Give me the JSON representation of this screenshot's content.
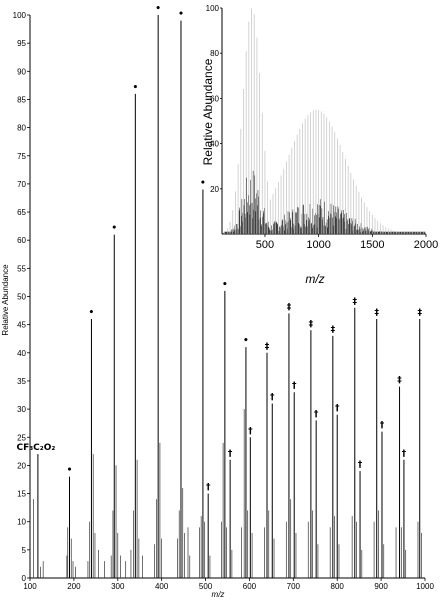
{
  "chart_data": [
    {
      "type": "bar",
      "xlabel": "m/z",
      "ylabel": "Relative Abundance",
      "xlim": [
        100,
        1000
      ],
      "ylim": [
        0,
        100
      ],
      "xticks": [
        100,
        200,
        300,
        400,
        500,
        600,
        700,
        800,
        900,
        1000
      ],
      "yticks": [
        0,
        5,
        10,
        15,
        20,
        25,
        30,
        35,
        40,
        45,
        50,
        55,
        60,
        65,
        70,
        75,
        80,
        85,
        90,
        95,
        100
      ],
      "grid": false,
      "peaks": [
        {
          "mz": 108,
          "intensity": 14
        },
        {
          "mz": 118,
          "intensity": 22,
          "label": "CF₃C₂O₂"
        },
        {
          "mz": 124,
          "intensity": 2
        },
        {
          "mz": 130,
          "intensity": 3
        },
        {
          "mz": 184,
          "intensity": 4
        },
        {
          "mz": 186,
          "intensity": 9
        },
        {
          "mz": 190,
          "intensity": 18,
          "label": "•"
        },
        {
          "mz": 194,
          "intensity": 7
        },
        {
          "mz": 198,
          "intensity": 3
        },
        {
          "mz": 204,
          "intensity": 2
        },
        {
          "mz": 232,
          "intensity": 3
        },
        {
          "mz": 236,
          "intensity": 10
        },
        {
          "mz": 240,
          "intensity": 46,
          "label": "•"
        },
        {
          "mz": 244,
          "intensity": 22
        },
        {
          "mz": 248,
          "intensity": 8
        },
        {
          "mz": 256,
          "intensity": 5
        },
        {
          "mz": 270,
          "intensity": 3
        },
        {
          "mz": 285,
          "intensity": 4
        },
        {
          "mz": 289,
          "intensity": 12
        },
        {
          "mz": 292,
          "intensity": 61,
          "label": "•"
        },
        {
          "mz": 296,
          "intensity": 20
        },
        {
          "mz": 300,
          "intensity": 8
        },
        {
          "mz": 306,
          "intensity": 4
        },
        {
          "mz": 318,
          "intensity": 3
        },
        {
          "mz": 330,
          "intensity": 5
        },
        {
          "mz": 336,
          "intensity": 12
        },
        {
          "mz": 340,
          "intensity": 86,
          "label": "•"
        },
        {
          "mz": 344,
          "intensity": 21
        },
        {
          "mz": 348,
          "intensity": 7
        },
        {
          "mz": 356,
          "intensity": 4
        },
        {
          "mz": 384,
          "intensity": 6
        },
        {
          "mz": 388,
          "intensity": 14
        },
        {
          "mz": 392,
          "intensity": 100,
          "label": "•"
        },
        {
          "mz": 396,
          "intensity": 24
        },
        {
          "mz": 400,
          "intensity": 7
        },
        {
          "mz": 436,
          "intensity": 7
        },
        {
          "mz": 440,
          "intensity": 12
        },
        {
          "mz": 444,
          "intensity": 99,
          "label": "•"
        },
        {
          "mz": 448,
          "intensity": 16
        },
        {
          "mz": 452,
          "intensity": 8
        },
        {
          "mz": 460,
          "intensity": 9
        },
        {
          "mz": 464,
          "intensity": 4
        },
        {
          "mz": 486,
          "intensity": 9
        },
        {
          "mz": 490,
          "intensity": 11
        },
        {
          "mz": 494,
          "intensity": 69,
          "label": "•"
        },
        {
          "mz": 498,
          "intensity": 10
        },
        {
          "mz": 506,
          "intensity": 15,
          "label": "†"
        },
        {
          "mz": 510,
          "intensity": 4
        },
        {
          "mz": 536,
          "intensity": 10
        },
        {
          "mz": 540,
          "intensity": 24
        },
        {
          "mz": 544,
          "intensity": 51,
          "label": "•"
        },
        {
          "mz": 548,
          "intensity": 9
        },
        {
          "mz": 556,
          "intensity": 21,
          "label": "†"
        },
        {
          "mz": 560,
          "intensity": 5
        },
        {
          "mz": 582,
          "intensity": 9
        },
        {
          "mz": 588,
          "intensity": 30
        },
        {
          "mz": 592,
          "intensity": 41,
          "label": "•"
        },
        {
          "mz": 596,
          "intensity": 12
        },
        {
          "mz": 602,
          "intensity": 25,
          "label": "†"
        },
        {
          "mz": 606,
          "intensity": 8
        },
        {
          "mz": 634,
          "intensity": 9
        },
        {
          "mz": 640,
          "intensity": 40,
          "label": "‡"
        },
        {
          "mz": 644,
          "intensity": 12
        },
        {
          "mz": 652,
          "intensity": 31,
          "label": "†"
        },
        {
          "mz": 656,
          "intensity": 7
        },
        {
          "mz": 684,
          "intensity": 10
        },
        {
          "mz": 690,
          "intensity": 47,
          "label": "‡"
        },
        {
          "mz": 694,
          "intensity": 14
        },
        {
          "mz": 702,
          "intensity": 33,
          "label": "†"
        },
        {
          "mz": 706,
          "intensity": 8
        },
        {
          "mz": 734,
          "intensity": 10
        },
        {
          "mz": 740,
          "intensity": 44,
          "label": "‡"
        },
        {
          "mz": 744,
          "intensity": 12
        },
        {
          "mz": 752,
          "intensity": 28,
          "label": "†"
        },
        {
          "mz": 756,
          "intensity": 6
        },
        {
          "mz": 784,
          "intensity": 9
        },
        {
          "mz": 790,
          "intensity": 43,
          "label": "‡"
        },
        {
          "mz": 794,
          "intensity": 11
        },
        {
          "mz": 800,
          "intensity": 29,
          "label": "†"
        },
        {
          "mz": 804,
          "intensity": 6
        },
        {
          "mz": 834,
          "intensity": 11
        },
        {
          "mz": 840,
          "intensity": 48,
          "label": "‡"
        },
        {
          "mz": 844,
          "intensity": 10
        },
        {
          "mz": 852,
          "intensity": 19,
          "label": "†"
        },
        {
          "mz": 856,
          "intensity": 5
        },
        {
          "mz": 884,
          "intensity": 10
        },
        {
          "mz": 890,
          "intensity": 46,
          "label": "‡"
        },
        {
          "mz": 894,
          "intensity": 12
        },
        {
          "mz": 902,
          "intensity": 26,
          "label": "†"
        },
        {
          "mz": 906,
          "intensity": 6
        },
        {
          "mz": 934,
          "intensity": 9
        },
        {
          "mz": 942,
          "intensity": 34,
          "label": "‡"
        },
        {
          "mz": 946,
          "intensity": 9
        },
        {
          "mz": 952,
          "intensity": 21,
          "label": "†"
        },
        {
          "mz": 956,
          "intensity": 5
        },
        {
          "mz": 984,
          "intensity": 10
        },
        {
          "mz": 988,
          "intensity": 46,
          "label": "‡"
        },
        {
          "mz": 992,
          "intensity": 8
        }
      ]
    },
    {
      "type": "bar",
      "xlabel": "m/z",
      "ylabel": "Relative Abundance",
      "xlim": [
        100,
        2000
      ],
      "ylim": [
        0,
        100
      ],
      "xticks": [
        500,
        1000,
        1500,
        2000
      ],
      "yticks": [
        0,
        20,
        40,
        60,
        80,
        100
      ],
      "grid": false,
      "envelopes": [
        {
          "center": 380,
          "width": 120,
          "max": 100
        },
        {
          "center": 980,
          "width": 380,
          "max": 55
        }
      ]
    }
  ]
}
